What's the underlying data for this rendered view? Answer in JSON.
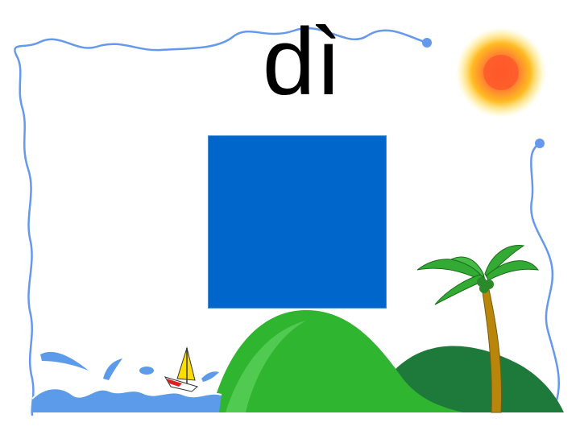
{
  "slide": {
    "pinyin_text": "dì"
  },
  "colors": {
    "background": "#ffffff",
    "border_line": "#6699ee",
    "card": "#0066cc",
    "hill_front": "#2fb52f",
    "hill_back": "#1e7a3a",
    "sea": "#5b9bea",
    "sun_core": "#ff6633",
    "sun_halo": "#ffcc00",
    "palm_leaf": "#33aa33",
    "palm_trunk": "#b8860b",
    "sail": "#ffdd00"
  },
  "icons": [
    "sun-icon",
    "sailboat-icon",
    "palm-tree-icon",
    "hill-icon",
    "sea-waves-icon"
  ]
}
